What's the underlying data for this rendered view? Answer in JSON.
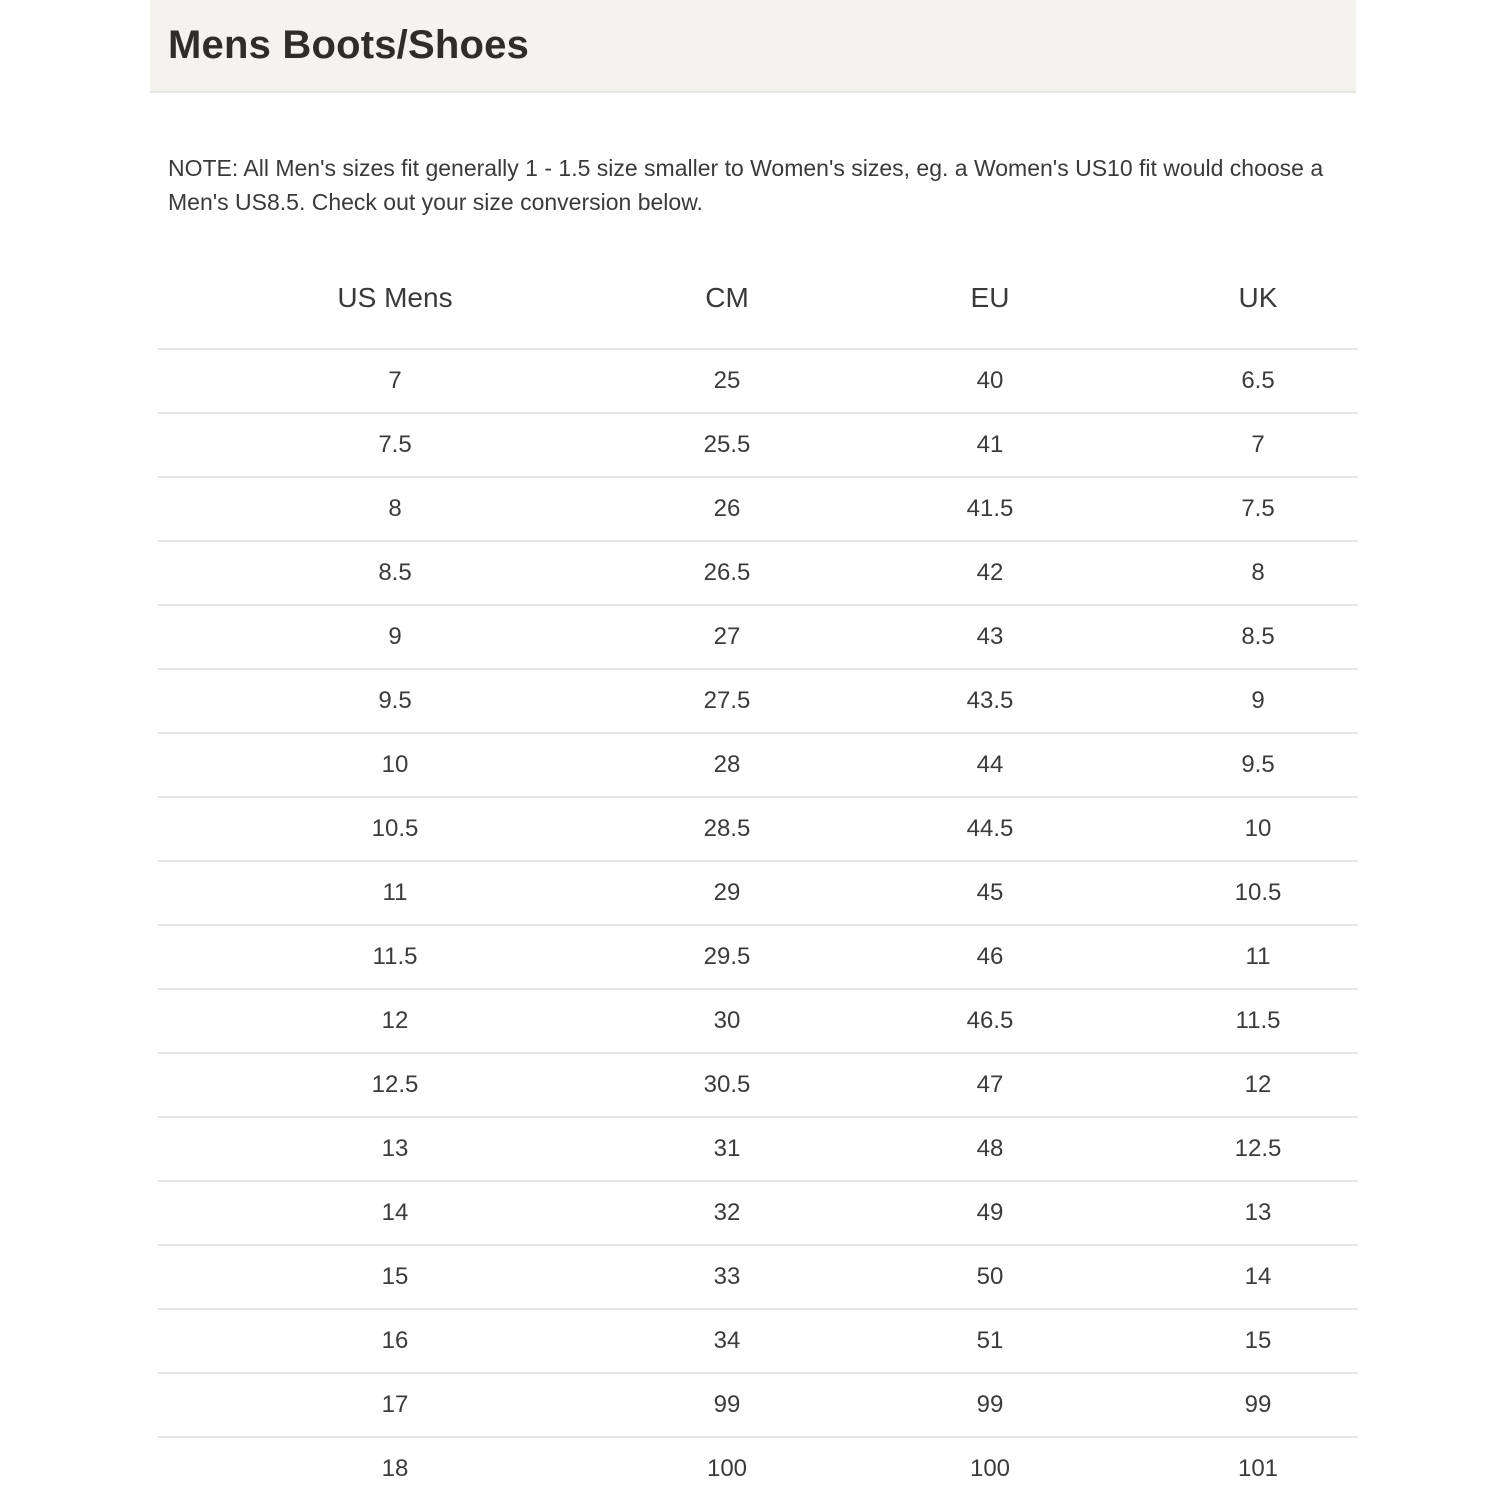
{
  "header": {
    "title": "Mens Boots/Shoes"
  },
  "note": {
    "text": "NOTE: All Men's sizes fit generally 1 - 1.5 size smaller to Women's sizes, eg. a Women's US10 fit would choose a Men's US8.5. Check out your size conversion below."
  },
  "table": {
    "headers": [
      "US Mens",
      "CM",
      "EU",
      "UK"
    ],
    "rows": [
      [
        "7",
        "25",
        "40",
        "6.5"
      ],
      [
        "7.5",
        "25.5",
        "41",
        "7"
      ],
      [
        "8",
        "26",
        "41.5",
        "7.5"
      ],
      [
        "8.5",
        "26.5",
        "42",
        "8"
      ],
      [
        "9",
        "27",
        "43",
        "8.5"
      ],
      [
        "9.5",
        "27.5",
        "43.5",
        "9"
      ],
      [
        "10",
        "28",
        "44",
        "9.5"
      ],
      [
        "10.5",
        "28.5",
        "44.5",
        "10"
      ],
      [
        "11",
        "29",
        "45",
        "10.5"
      ],
      [
        "11.5",
        "29.5",
        "46",
        "11"
      ],
      [
        "12",
        "30",
        "46.5",
        "11.5"
      ],
      [
        "12.5",
        "30.5",
        "47",
        "12"
      ],
      [
        "13",
        "31",
        "48",
        "12.5"
      ],
      [
        "14",
        "32",
        "49",
        "13"
      ],
      [
        "15",
        "33",
        "50",
        "14"
      ],
      [
        "16",
        "34",
        "51",
        "15"
      ],
      [
        "17",
        "99",
        "99",
        "99"
      ],
      [
        "18",
        "100",
        "100",
        "101"
      ]
    ]
  },
  "colors": {
    "title_band_bg": "#f4f3ee",
    "title_band_border": "#e7e6e1",
    "title_text": "#2e2d29",
    "body_text": "#3b3b3b",
    "row_divider": "#e6e6e6"
  }
}
